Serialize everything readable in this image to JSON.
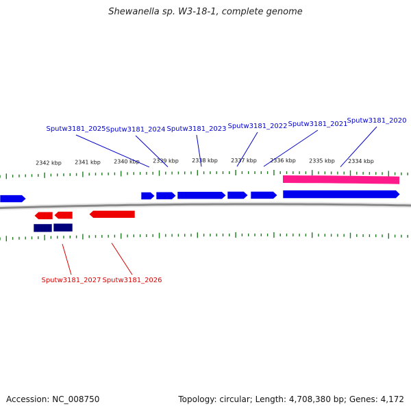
{
  "title": "Shewanella sp. W3-18-1, complete genome",
  "footer": {
    "accession": "Accession: NC_008750",
    "topology": "Topology: circular; Length: 4,708,380 bp; Genes: 4,172"
  },
  "colors": {
    "forward_gene": "#0000ee",
    "reverse_gene": "#ee0000",
    "forward_region": "#0000a0",
    "reverse_region": "#00007a",
    "pink_region": "#ff1a8c",
    "tick": "#1a7a1a",
    "backbone": "#888888",
    "label_forward": "#0000cc",
    "label_reverse": "#dd0000"
  },
  "kbp_labels": [
    "2342 kbp",
    "2341 kbp",
    "2340 kbp",
    "2339 kbp",
    "2338 kbp",
    "2337 kbp",
    "2336 kbp",
    "2335 kbp",
    "2334 kbp"
  ],
  "forward_gene_labels": [
    "Sputw3181_2025",
    "Sputw3181_2024",
    "Sputw3181_2023",
    "Sputw3181_2022",
    "Sputw3181_2021",
    "Sputw3181_2020"
  ],
  "reverse_gene_labels": [
    "Sputw3181_2027",
    "Sputw3181_2026"
  ]
}
